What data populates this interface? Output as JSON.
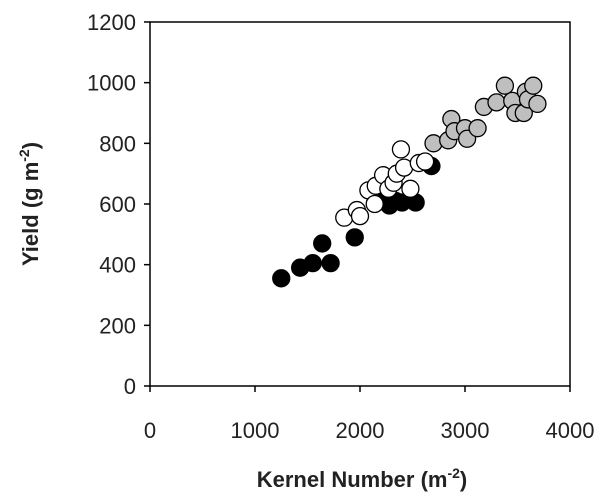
{
  "chart_data": {
    "type": "scatter",
    "xlim": [
      0,
      4000
    ],
    "ylim": [
      0,
      1200
    ],
    "x_ticks": [
      0,
      1000,
      2000,
      3000,
      4000
    ],
    "y_ticks": [
      0,
      200,
      400,
      600,
      800,
      1000,
      1200
    ],
    "x_tick_labels": [
      "0",
      "1000",
      "2000",
      "3000",
      "4000"
    ],
    "y_tick_labels": [
      "0",
      "200",
      "400",
      "600",
      "800",
      "1000",
      "1200"
    ],
    "xlabel_text": "Kernel Number (m",
    "xlabel_sup": "-2",
    "xlabel_close": ")",
    "ylabel_text": "Yield   (g m",
    "ylabel_sup": "-2",
    "ylabel_close": ")",
    "grid": false,
    "legend": "none",
    "series": [
      {
        "color": "#000000",
        "points": [
          [
            1250,
            355
          ],
          [
            1430,
            390
          ],
          [
            1550,
            405
          ],
          [
            1640,
            470
          ],
          [
            1720,
            405
          ],
          [
            1950,
            490
          ],
          [
            2250,
            630
          ],
          [
            2280,
            595
          ],
          [
            2340,
            610
          ],
          [
            2400,
            605
          ],
          [
            2530,
            605
          ],
          [
            2680,
            725
          ]
        ]
      },
      {
        "color": "#ffffff",
        "points": [
          [
            1850,
            555
          ],
          [
            1970,
            580
          ],
          [
            2000,
            560
          ],
          [
            2080,
            645
          ],
          [
            2140,
            600
          ],
          [
            2150,
            660
          ],
          [
            2220,
            695
          ],
          [
            2270,
            650
          ],
          [
            2320,
            670
          ],
          [
            2350,
            700
          ],
          [
            2390,
            780
          ],
          [
            2420,
            720
          ],
          [
            2480,
            650
          ],
          [
            2560,
            735
          ],
          [
            2620,
            740
          ]
        ]
      },
      {
        "color": "#bfbfbf",
        "points": [
          [
            2700,
            800
          ],
          [
            2840,
            810
          ],
          [
            2870,
            880
          ],
          [
            2900,
            840
          ],
          [
            3000,
            850
          ],
          [
            3020,
            815
          ],
          [
            3120,
            850
          ],
          [
            3180,
            920
          ],
          [
            3300,
            935
          ],
          [
            3380,
            990
          ],
          [
            3450,
            940
          ],
          [
            3480,
            900
          ],
          [
            3560,
            900
          ],
          [
            3580,
            970
          ],
          [
            3600,
            945
          ],
          [
            3650,
            990
          ],
          [
            3690,
            930
          ]
        ]
      }
    ]
  }
}
